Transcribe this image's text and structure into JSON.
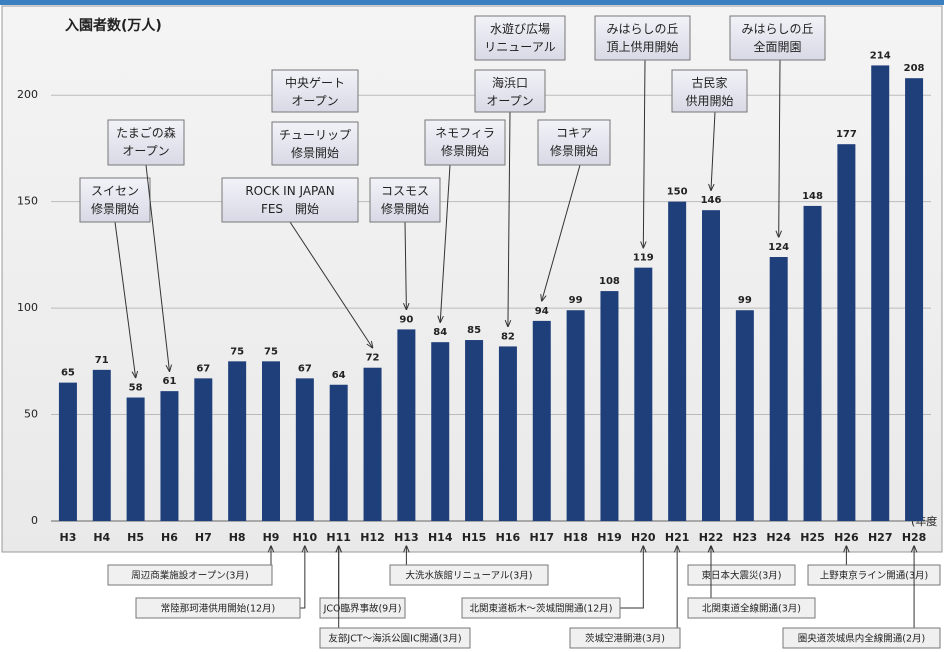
{
  "chart_data": {
    "type": "bar",
    "y_axis_label": "入園者数(万人)",
    "x_axis_label": "(年度",
    "categories": [
      "H3",
      "H4",
      "H5",
      "H6",
      "H7",
      "H8",
      "H9",
      "H10",
      "H11",
      "H12",
      "H13",
      "H14",
      "H15",
      "H16",
      "H17",
      "H18",
      "H19",
      "H20",
      "H21",
      "H22",
      "H23",
      "H24",
      "H25",
      "H26",
      "H27",
      "H28"
    ],
    "values": [
      65,
      71,
      58,
      61,
      67,
      75,
      75,
      67,
      64,
      72,
      90,
      84,
      85,
      82,
      94,
      99,
      108,
      119,
      150,
      146,
      99,
      124,
      148,
      177,
      214,
      208
    ],
    "color": "#1f3f7a",
    "ylim": [
      0,
      225
    ],
    "yticks": [
      0,
      50,
      100,
      150,
      200
    ],
    "grid": true,
    "annotations": [
      {
        "text": "スイセン\n修景開始",
        "target": "H5"
      },
      {
        "text": "たまごの森\nオープン",
        "target": "H6"
      },
      {
        "text": "ROCK IN JAPAN\nFES　開始",
        "target": "H12"
      },
      {
        "text": "チューリップ\n修景開始"
      },
      {
        "text": "中央ゲート\nオープン"
      },
      {
        "text": "コスモス\n修景開始",
        "target": "H13"
      },
      {
        "text": "ネモフィラ\n修景開始",
        "target": "H14"
      },
      {
        "text": "水遊び広場\nリニューアル"
      },
      {
        "text": "海浜口\nオープン",
        "target": "H16"
      },
      {
        "text": "コキア\n修景開始",
        "target": "H17"
      },
      {
        "text": "みはらしの丘\n頂上供用開始",
        "target": "H20"
      },
      {
        "text": "古民家\n供用開始",
        "target": "H22"
      },
      {
        "text": "みはらしの丘\n全面開園",
        "target": "H24"
      }
    ],
    "events": [
      {
        "text": "周辺商業施設オープン(3月)",
        "target": "H9"
      },
      {
        "text": "常陸那珂港供用開始(12月)",
        "target": "H10"
      },
      {
        "text": "JCO臨界事故(9月)",
        "target": "H11"
      },
      {
        "text": "友部JCT～海浜公園IC開通(3月)",
        "target": "H11"
      },
      {
        "text": "大洗水族館リニューアル(3月)",
        "target": "H13"
      },
      {
        "text": "北関東道栃木～茨城間開通(12月)",
        "target": "H20"
      },
      {
        "text": "茨城空港開港(3月)",
        "target": "H21"
      },
      {
        "text": "東日本大震災(3月)",
        "target": "H22"
      },
      {
        "text": "北関東道全線開通(3月)",
        "target": "H22"
      },
      {
        "text": "上野東京ライン開通(3月)",
        "target": "H26"
      },
      {
        "text": "圏央道茨城県内全線開通(2月)",
        "target": "H28"
      }
    ]
  }
}
